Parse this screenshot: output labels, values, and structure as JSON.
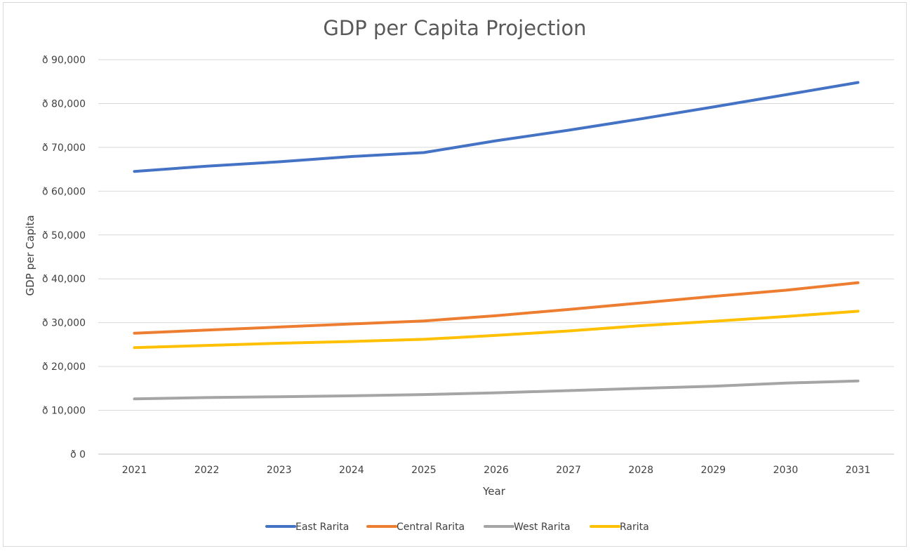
{
  "chart_data": {
    "type": "line",
    "title": "GDP per Capita Projection",
    "xlabel": "Year",
    "ylabel": "GDP per Capita",
    "categories": [
      "2021",
      "2022",
      "2023",
      "2024",
      "2025",
      "2026",
      "2027",
      "2028",
      "2029",
      "2030",
      "2031"
    ],
    "y_ticks": [
      "ð 0",
      "ð 10,000",
      "ð 20,000",
      "ð 30,000",
      "ð 40,000",
      "ð 50,000",
      "ð 60,000",
      "ð 70,000",
      "ð 80,000",
      "ð 90,000"
    ],
    "ylim": [
      0,
      90000
    ],
    "grid": true,
    "legend_position": "bottom",
    "series": [
      {
        "name": "East Rarita",
        "color": "#4472C4",
        "values": [
          64500,
          65700,
          66700,
          67900,
          68800,
          71500,
          73900,
          76500,
          79200,
          82000,
          84800
        ]
      },
      {
        "name": "Central Rarita",
        "color": "#ED7D31",
        "values": [
          27600,
          28300,
          29000,
          29700,
          30400,
          31600,
          33000,
          34500,
          36000,
          37400,
          39100
        ]
      },
      {
        "name": "West Rarita",
        "color": "#A5A5A5",
        "values": [
          12600,
          12900,
          13100,
          13300,
          13600,
          14000,
          14500,
          15000,
          15500,
          16200,
          16700
        ]
      },
      {
        "name": "Rarita",
        "color": "#FFC000",
        "values": [
          24300,
          24800,
          25300,
          25700,
          26200,
          27100,
          28100,
          29300,
          30300,
          31400,
          32600
        ]
      }
    ]
  }
}
